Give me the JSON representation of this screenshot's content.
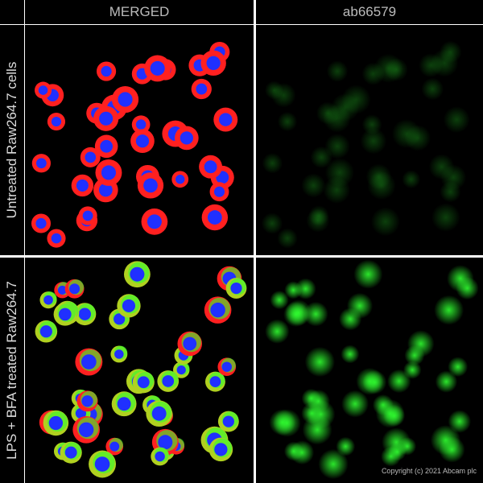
{
  "columns": [
    "MERGED",
    "ab66579"
  ],
  "rows": [
    "Untreated Raw264.7 cells",
    "LPS + BFA treated Raw264.7"
  ],
  "copyright": "Copyright (c) 2021 Abcam plc",
  "colors": {
    "actin": "#ff2020",
    "nucleus": "#2030ff",
    "target": "#30ff30",
    "background": "#000000"
  }
}
